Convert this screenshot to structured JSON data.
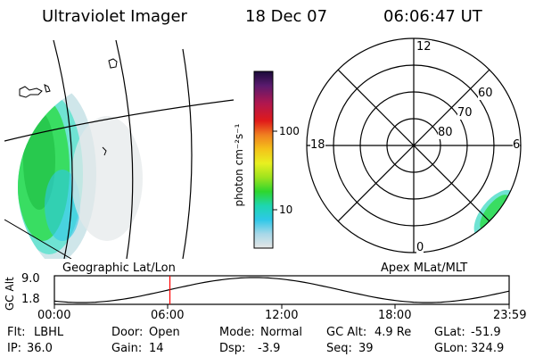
{
  "header": {
    "instrument": "Ultraviolet Imager",
    "date": "18 Dec 07",
    "time": "06:06:47 UT"
  },
  "geo_panel": {
    "label": "Geographic Lat/Lon"
  },
  "colorbar": {
    "label": "photon cm⁻²s⁻¹",
    "tick_labels": [
      "100",
      "10"
    ],
    "scale": "log",
    "colors": [
      "#1a0b3a",
      "#5a1a6e",
      "#b0174f",
      "#e01a1a",
      "#f08020",
      "#f4c21a",
      "#e8f020",
      "#9ee31e",
      "#2ed62e",
      "#1ed6b0",
      "#2ec8e8",
      "#a8d8e8",
      "#e6e6e6"
    ]
  },
  "polar_panel": {
    "label": "Apex  MLat/MLT",
    "mlt_labels": {
      "top": "12",
      "left": "18",
      "right": "6",
      "bottom": "0"
    },
    "lat_labels": [
      "60",
      "70",
      "80"
    ]
  },
  "gc_plot": {
    "axis_label": "GC Alt",
    "y_ticks": [
      "9.0",
      "1.8"
    ],
    "x_ticks": [
      "00:00",
      "06:00",
      "12:00",
      "18:00",
      "23:59"
    ],
    "current_time_fraction": 0.254
  },
  "status": {
    "filter_key": "Flt:",
    "filter": "LBHL",
    "door_key": "Door:",
    "door": "Open",
    "mode_key": "Mode:",
    "mode": "Normal",
    "gcalt_key": "GC Alt:",
    "gcalt": "4.9 Re",
    "glat_key": "GLat:",
    "glat": "-51.9",
    "ip_key": "IP:",
    "ip": "36.0",
    "gain_key": "Gain:",
    "gain": "14",
    "dsp_key": "Dsp:",
    "dsp": "-3.9",
    "seq_key": "Seq:",
    "seq": "39",
    "glon_key": "GLon:",
    "glon": "324.9"
  },
  "colors": {
    "trace": "#000000",
    "time_marker": "#ff0000"
  }
}
